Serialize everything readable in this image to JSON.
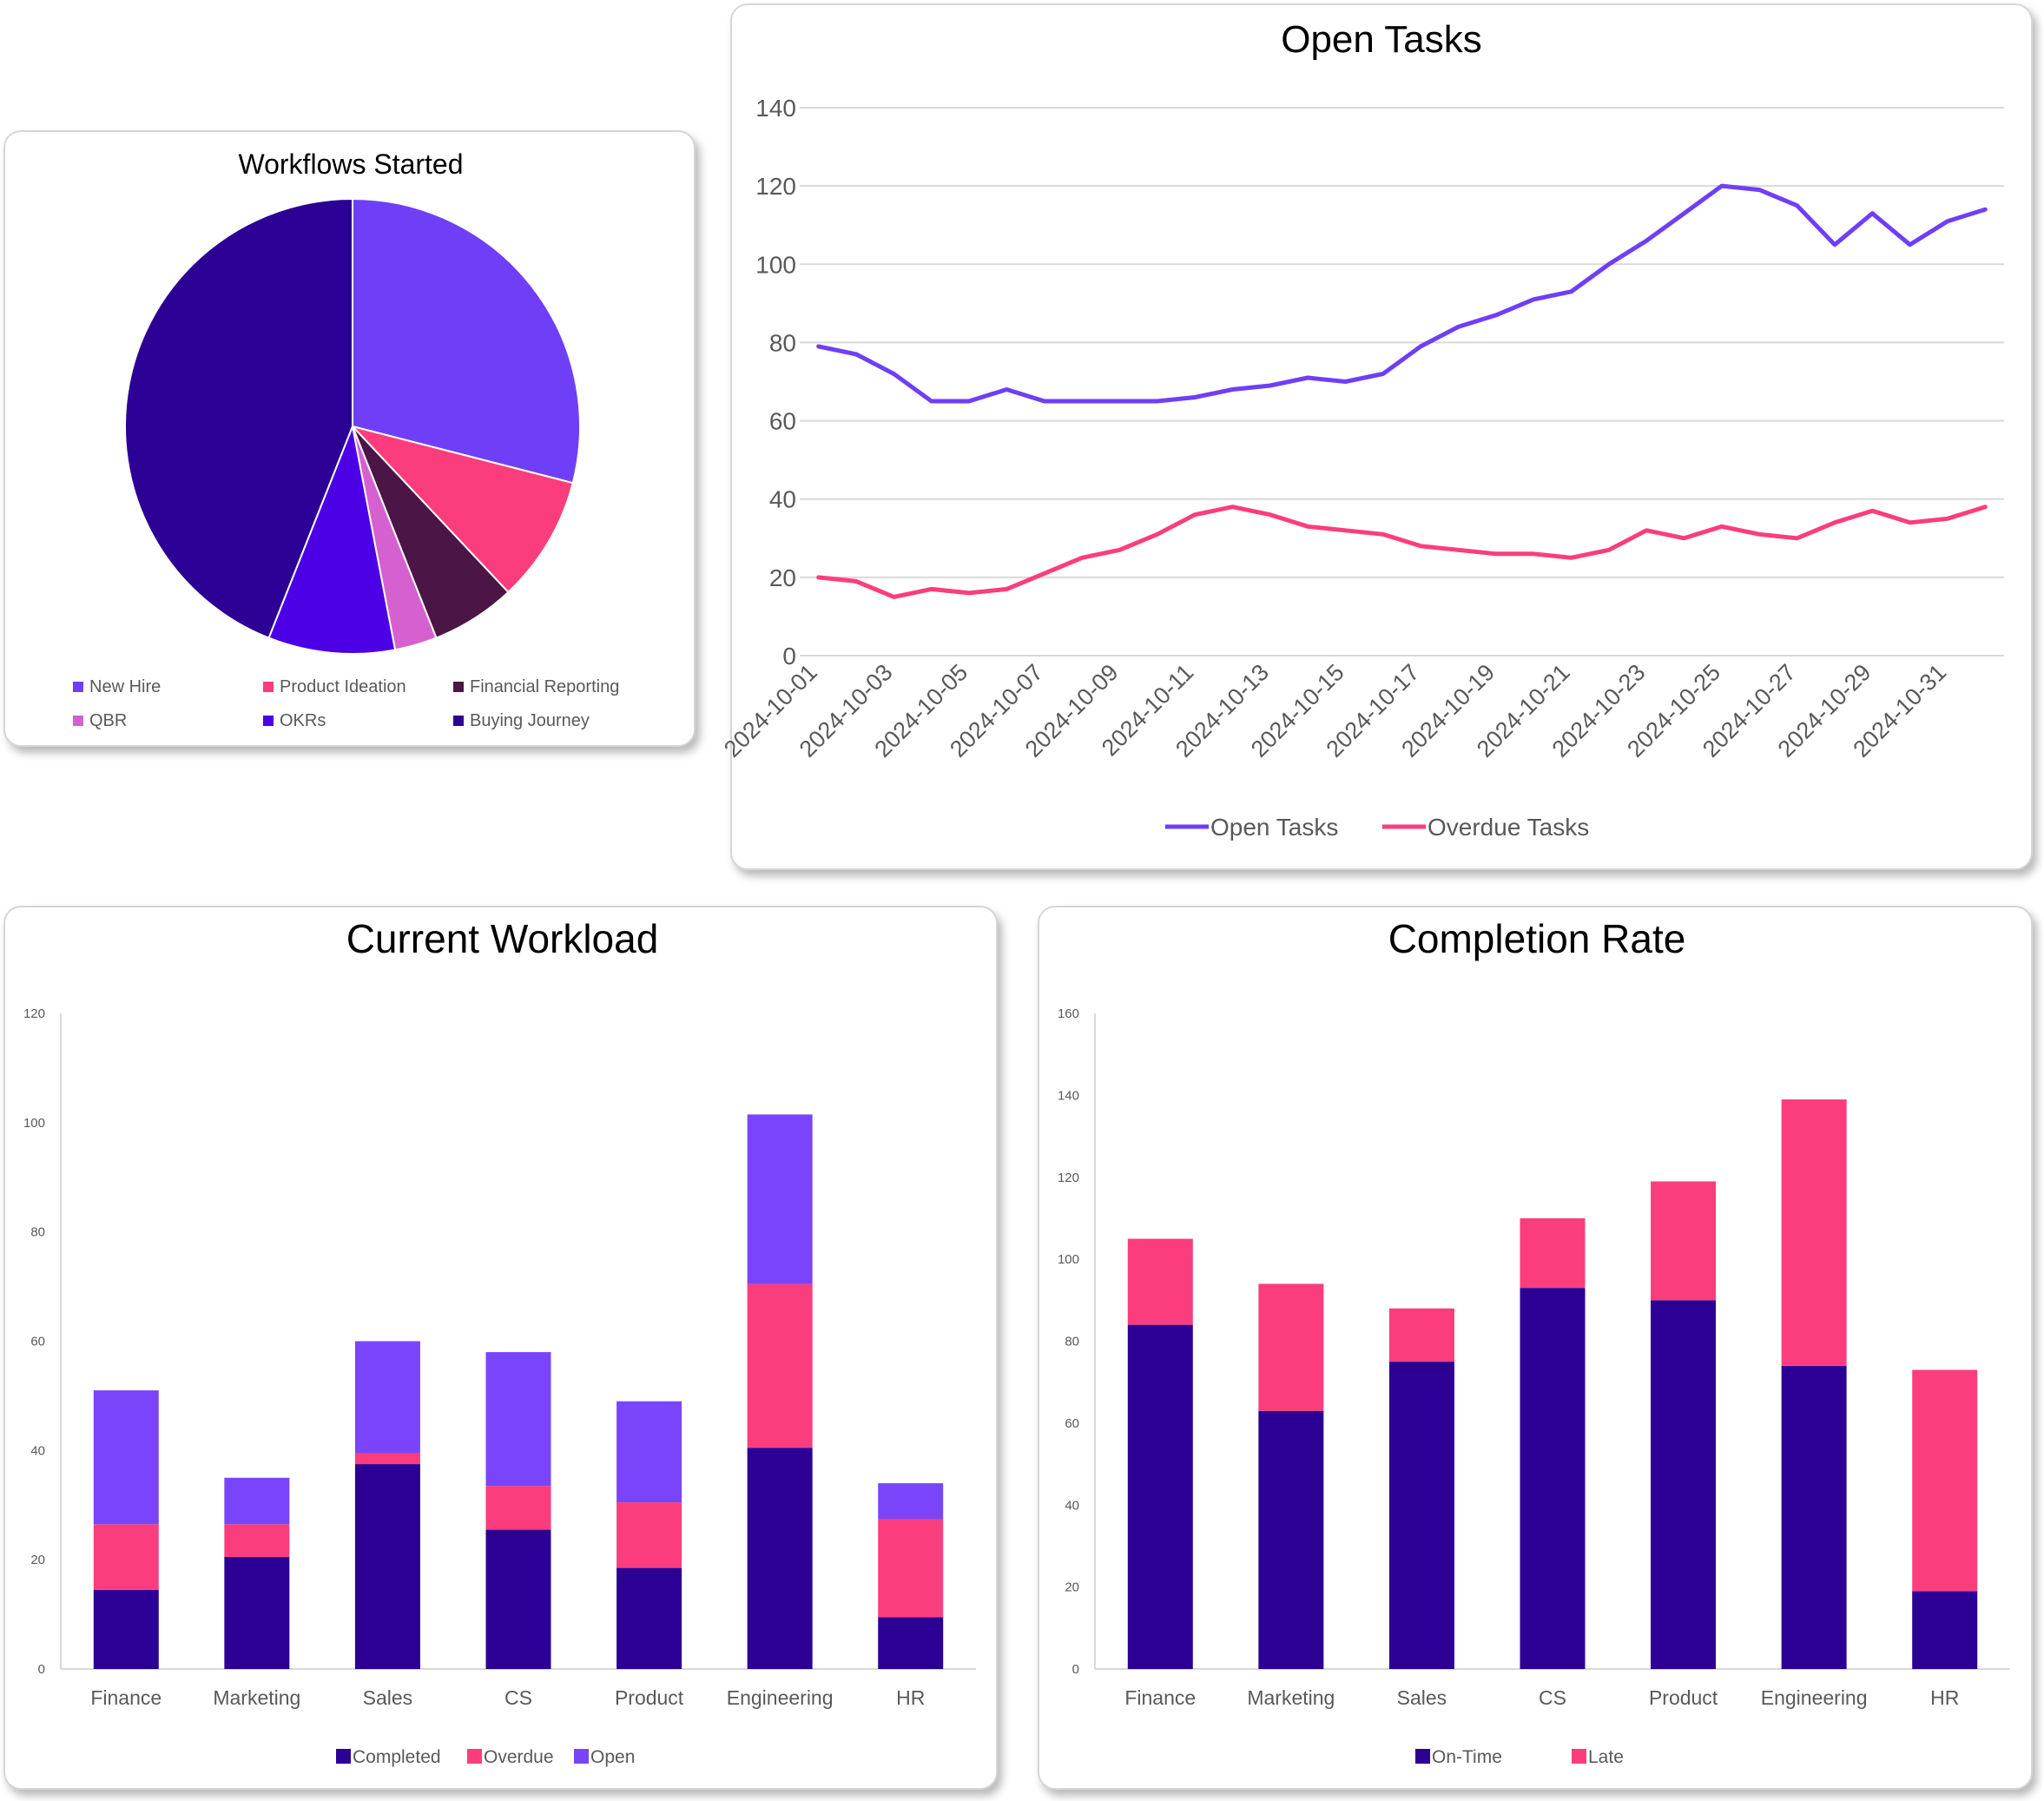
{
  "colors": {
    "grid": "#d9d9d9",
    "axis_text": "#595959",
    "title": "#000000"
  },
  "chart_data": [
    {
      "id": "pie",
      "type": "pie",
      "title": "Workflows Started",
      "slices": [
        {
          "label": "New Hire",
          "value": 29,
          "color": "#6e3ff7"
        },
        {
          "label": "Product Ideation",
          "value": 9,
          "color": "#fb3d7e"
        },
        {
          "label": "Financial Reporting",
          "value": 6,
          "color": "#4b1545"
        },
        {
          "label": "QBR",
          "value": 3,
          "color": "#d561d0"
        },
        {
          "label": "OKRs",
          "value": 9,
          "color": "#4b00e6"
        },
        {
          "label": "Buying Journey",
          "value": 44,
          "color": "#2c0094"
        }
      ],
      "legend_position": "bottom"
    },
    {
      "id": "line",
      "type": "line",
      "title": "Open Tasks",
      "x": [
        "2024-10-01",
        "2024-10-02",
        "2024-10-03",
        "2024-10-04",
        "2024-10-05",
        "2024-10-06",
        "2024-10-07",
        "2024-10-08",
        "2024-10-09",
        "2024-10-10",
        "2024-10-11",
        "2024-10-12",
        "2024-10-13",
        "2024-10-14",
        "2024-10-15",
        "2024-10-16",
        "2024-10-17",
        "2024-10-18",
        "2024-10-19",
        "2024-10-20",
        "2024-10-21",
        "2024-10-22",
        "2024-10-23",
        "2024-10-24",
        "2024-10-25",
        "2024-10-26",
        "2024-10-27",
        "2024-10-28",
        "2024-10-29",
        "2024-10-30",
        "2024-10-31",
        "2024-11-01"
      ],
      "tick_labels": [
        "2024-10-01",
        "2024-10-03",
        "2024-10-05",
        "2024-10-07",
        "2024-10-09",
        "2024-10-11",
        "2024-10-13",
        "2024-10-15",
        "2024-10-17",
        "2024-10-19",
        "2024-10-21",
        "2024-10-23",
        "2024-10-25",
        "2024-10-27",
        "2024-10-29",
        "2024-10-31"
      ],
      "series": [
        {
          "name": "Open Tasks",
          "color": "#6e3ff7",
          "values": [
            79,
            77,
            72,
            65,
            65,
            68,
            65,
            65,
            65,
            65,
            66,
            68,
            69,
            71,
            70,
            72,
            79,
            84,
            87,
            91,
            93,
            100,
            106,
            113,
            120,
            119,
            115,
            105,
            113,
            105,
            111,
            114
          ]
        },
        {
          "name": "Overdue Tasks",
          "color": "#fb3d7e",
          "values": [
            20,
            19,
            15,
            17,
            16,
            17,
            21,
            25,
            27,
            31,
            36,
            38,
            36,
            33,
            32,
            31,
            28,
            27,
            26,
            26,
            25,
            27,
            32,
            30,
            33,
            31,
            30,
            34,
            37,
            34,
            35,
            38
          ]
        }
      ],
      "ylim": [
        0,
        140
      ],
      "yticks": [
        0,
        20,
        40,
        60,
        80,
        100,
        120,
        140
      ],
      "grid": true,
      "legend_position": "bottom"
    },
    {
      "id": "workload",
      "type": "bar",
      "stacked": true,
      "title": "Current Workload",
      "categories": [
        "Finance",
        "Marketing",
        "Sales",
        "CS",
        "Product",
        "Engineering",
        "HR"
      ],
      "series": [
        {
          "name": "Completed",
          "color": "#2c0094",
          "values": [
            14.5,
            20.5,
            37.5,
            25.5,
            18.5,
            40.5,
            9.5
          ]
        },
        {
          "name": "Overdue",
          "color": "#fb3d7e",
          "values": [
            12,
            6,
            2,
            8,
            12,
            30,
            18
          ]
        },
        {
          "name": "Open",
          "color": "#7a45fa",
          "values": [
            24.5,
            8.5,
            20.5,
            24.5,
            18.5,
            31,
            6.5
          ]
        }
      ],
      "ylim": [
        0,
        120
      ],
      "yticks": [
        0,
        20,
        40,
        60,
        80,
        100,
        120
      ],
      "grid": false,
      "legend_position": "bottom"
    },
    {
      "id": "completion",
      "type": "bar",
      "stacked": true,
      "title": "Completion Rate",
      "categories": [
        "Finance",
        "Marketing",
        "Sales",
        "CS",
        "Product",
        "Engineering",
        "HR"
      ],
      "series": [
        {
          "name": "On-Time",
          "color": "#2c0094",
          "values": [
            84,
            63,
            75,
            93,
            90,
            74,
            19
          ]
        },
        {
          "name": "Late",
          "color": "#fb3d7e",
          "values": [
            21,
            31,
            13,
            17,
            29,
            65,
            54
          ]
        }
      ],
      "ylim": [
        0,
        160
      ],
      "yticks": [
        0,
        20,
        40,
        60,
        80,
        100,
        120,
        140,
        160
      ],
      "grid": false,
      "legend_position": "bottom"
    }
  ]
}
